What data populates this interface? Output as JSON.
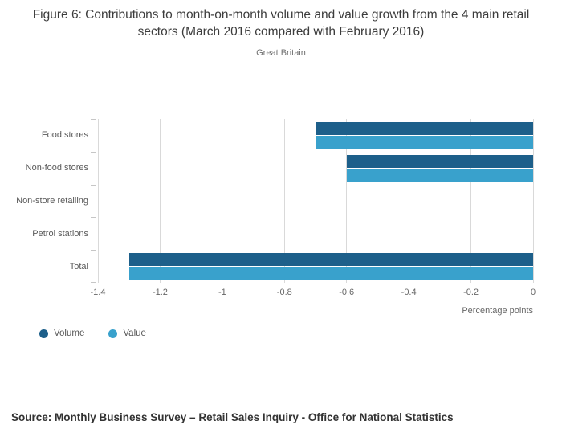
{
  "title": "Figure 6: Contributions to month-on-month volume and value growth from the 4 main retail sectors (March 2016 compared with February 2016)",
  "subtitle": "Great Britain",
  "source": "Source: Monthly Business Survey – Retail Sales Inquiry - Office for National Statistics",
  "colors": {
    "volume": "#1d5f8a",
    "value": "#39a1cc",
    "gridline": "#d9d9d9"
  },
  "chart_data": {
    "type": "bar",
    "orientation": "horizontal",
    "categories": [
      "Food stores",
      "Non-food stores",
      "Non-store retailing",
      "Petrol stations",
      "Total"
    ],
    "series": [
      {
        "name": "Volume",
        "color": "#1d5f8a",
        "values": [
          -0.7,
          -0.6,
          0,
          0,
          -1.3
        ]
      },
      {
        "name": "Value",
        "color": "#39a1cc",
        "values": [
          -0.7,
          -0.6,
          0,
          0,
          -1.3
        ]
      }
    ],
    "xlabel": "Percentage points",
    "xlim": [
      -1.4,
      0
    ],
    "xticks": [
      -1.4,
      -1.2,
      -1,
      -0.8,
      -0.6,
      -0.4,
      -0.2,
      0
    ],
    "grid": true,
    "legend_position": "bottom-left"
  }
}
